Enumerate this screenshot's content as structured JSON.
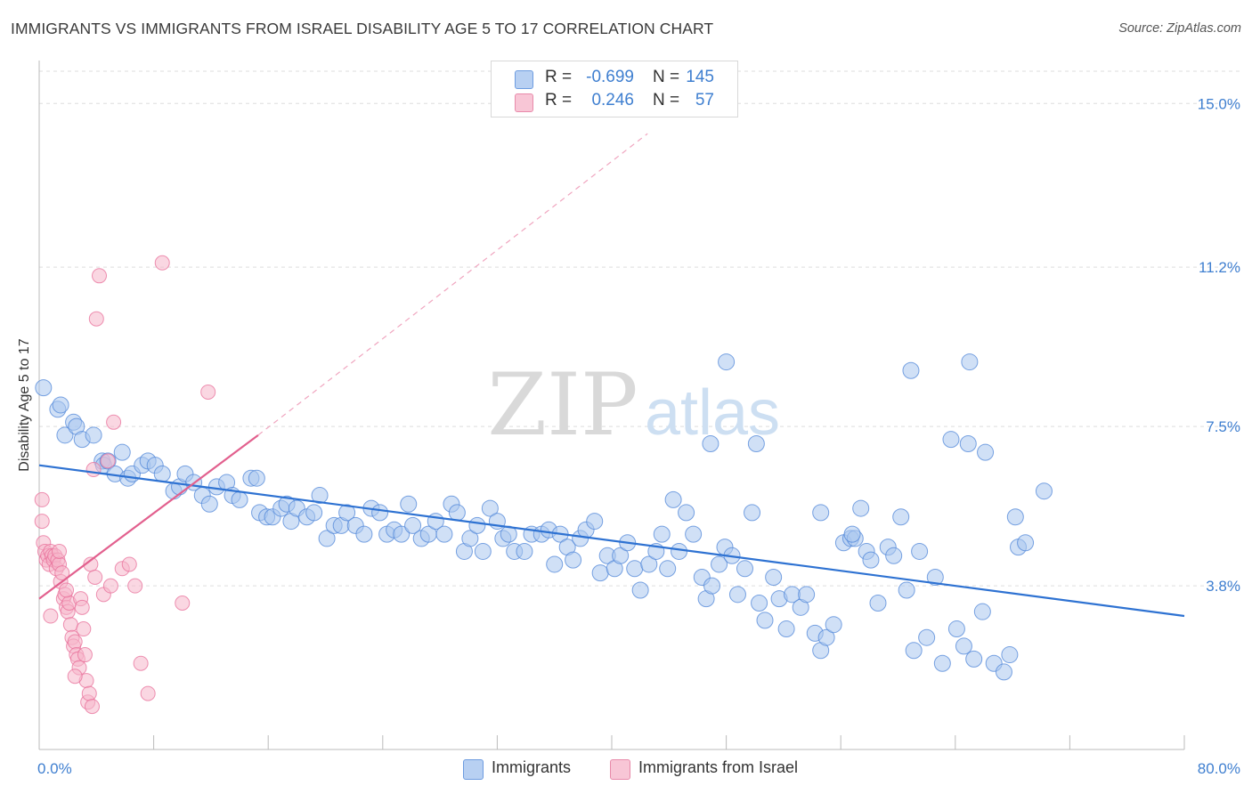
{
  "title": "IMMIGRANTS VS IMMIGRANTS FROM ISRAEL DISABILITY AGE 5 TO 17 CORRELATION CHART",
  "source": "Source: ZipAtlas.com",
  "watermark": {
    "zip": "ZIP",
    "atlas": "atlas"
  },
  "colors": {
    "blue": "#4f86d8",
    "blue_fill": "#a9c7ef",
    "pink": "#e86f9a",
    "pink_fill": "#f5b6cb",
    "tick_text": "#3f7fd0",
    "grid": "#dddddd"
  },
  "legend_top": {
    "rows": [
      {
        "series": "Immigrants",
        "r_label": "R =",
        "r_value": "-0.699",
        "n_label": "N =",
        "n_value": "145"
      },
      {
        "series": "Immigrants from Israel",
        "r_label": "R =",
        "r_value": "0.246",
        "n_label": "N =",
        "n_value": "57"
      }
    ]
  },
  "legend_bottom": [
    "Immigrants",
    "Immigrants from Israel"
  ],
  "chart_data": {
    "type": "scatter",
    "title": "IMMIGRANTS VS IMMIGRANTS FROM ISRAEL DISABILITY AGE 5 TO 17 CORRELATION CHART",
    "xlabel": "",
    "ylabel": "Disability Age 5 to 17",
    "xlim": [
      0,
      80
    ],
    "ylim": [
      0,
      15.75
    ],
    "x_tick_labels": [
      {
        "value": 0,
        "label": "0.0%"
      },
      {
        "value": 80,
        "label": "80.0%"
      }
    ],
    "y_tick_labels": [
      {
        "value": 3.8,
        "label": "3.8%"
      },
      {
        "value": 7.5,
        "label": "7.5%"
      },
      {
        "value": 11.2,
        "label": "11.2%"
      },
      {
        "value": 15.0,
        "label": "15.0%"
      }
    ],
    "x_minor_ticks": [
      0,
      8,
      16,
      24,
      32,
      40,
      48,
      56,
      64,
      72,
      80
    ],
    "grid": true,
    "legend_position": "top-center",
    "series": [
      {
        "name": "Immigrants",
        "color": "#4f86d8",
        "trend": {
          "x": [
            0,
            80
          ],
          "y": [
            6.6,
            3.1
          ]
        },
        "points": [
          [
            0.3,
            8.4
          ],
          [
            1.3,
            7.9
          ],
          [
            1.5,
            8.0
          ],
          [
            1.8,
            7.3
          ],
          [
            2.4,
            7.6
          ],
          [
            2.6,
            7.5
          ],
          [
            3.0,
            7.2
          ],
          [
            3.8,
            7.3
          ],
          [
            4.4,
            6.7
          ],
          [
            4.5,
            6.6
          ],
          [
            4.8,
            6.7
          ],
          [
            5.3,
            6.4
          ],
          [
            6.2,
            6.3
          ],
          [
            6.5,
            6.4
          ],
          [
            5.8,
            6.9
          ],
          [
            7.2,
            6.6
          ],
          [
            7.6,
            6.7
          ],
          [
            8.1,
            6.6
          ],
          [
            8.6,
            6.4
          ],
          [
            9.4,
            6.0
          ],
          [
            9.8,
            6.1
          ],
          [
            10.2,
            6.4
          ],
          [
            10.8,
            6.2
          ],
          [
            11.4,
            5.9
          ],
          [
            11.9,
            5.7
          ],
          [
            12.4,
            6.1
          ],
          [
            13.1,
            6.2
          ],
          [
            13.5,
            5.9
          ],
          [
            14.0,
            5.8
          ],
          [
            14.8,
            6.3
          ],
          [
            15.2,
            6.3
          ],
          [
            15.4,
            5.5
          ],
          [
            15.9,
            5.4
          ],
          [
            16.3,
            5.4
          ],
          [
            16.9,
            5.6
          ],
          [
            17.3,
            5.7
          ],
          [
            17.6,
            5.3
          ],
          [
            18.0,
            5.6
          ],
          [
            18.7,
            5.4
          ],
          [
            19.2,
            5.5
          ],
          [
            19.6,
            5.9
          ],
          [
            20.1,
            4.9
          ],
          [
            20.6,
            5.2
          ],
          [
            21.1,
            5.2
          ],
          [
            21.5,
            5.5
          ],
          [
            22.1,
            5.2
          ],
          [
            22.7,
            5.0
          ],
          [
            23.2,
            5.6
          ],
          [
            23.8,
            5.5
          ],
          [
            24.3,
            5.0
          ],
          [
            24.8,
            5.1
          ],
          [
            25.3,
            5.0
          ],
          [
            25.8,
            5.7
          ],
          [
            26.1,
            5.2
          ],
          [
            26.7,
            4.9
          ],
          [
            27.2,
            5.0
          ],
          [
            27.7,
            5.3
          ],
          [
            28.3,
            5.0
          ],
          [
            28.8,
            5.7
          ],
          [
            29.2,
            5.5
          ],
          [
            29.7,
            4.6
          ],
          [
            30.1,
            4.9
          ],
          [
            30.6,
            5.2
          ],
          [
            31.0,
            4.6
          ],
          [
            31.5,
            5.6
          ],
          [
            32.0,
            5.3
          ],
          [
            32.4,
            4.9
          ],
          [
            32.8,
            5.0
          ],
          [
            33.2,
            4.6
          ],
          [
            33.9,
            4.6
          ],
          [
            34.4,
            5.0
          ],
          [
            35.1,
            5.0
          ],
          [
            35.6,
            5.1
          ],
          [
            36.0,
            4.3
          ],
          [
            36.4,
            5.0
          ],
          [
            36.9,
            4.7
          ],
          [
            37.3,
            4.4
          ],
          [
            37.8,
            4.9
          ],
          [
            38.2,
            5.1
          ],
          [
            38.8,
            5.3
          ],
          [
            39.2,
            4.1
          ],
          [
            39.7,
            4.5
          ],
          [
            40.2,
            4.2
          ],
          [
            40.6,
            4.5
          ],
          [
            41.1,
            4.8
          ],
          [
            41.6,
            4.2
          ],
          [
            42.0,
            3.7
          ],
          [
            42.6,
            4.3
          ],
          [
            43.1,
            4.6
          ],
          [
            43.5,
            5.0
          ],
          [
            43.9,
            4.2
          ],
          [
            44.3,
            5.8
          ],
          [
            44.7,
            4.6
          ],
          [
            45.2,
            5.5
          ],
          [
            45.7,
            5.0
          ],
          [
            46.3,
            4.0
          ],
          [
            46.6,
            3.5
          ],
          [
            47.0,
            3.8
          ],
          [
            47.5,
            4.3
          ],
          [
            47.9,
            4.7
          ],
          [
            48.4,
            4.5
          ],
          [
            48.8,
            3.6
          ],
          [
            49.3,
            4.2
          ],
          [
            49.8,
            5.5
          ],
          [
            50.3,
            3.4
          ],
          [
            50.7,
            3.0
          ],
          [
            51.3,
            4.0
          ],
          [
            51.7,
            3.5
          ],
          [
            52.2,
            2.8
          ],
          [
            52.6,
            3.6
          ],
          [
            53.2,
            3.3
          ],
          [
            53.6,
            3.6
          ],
          [
            54.2,
            2.7
          ],
          [
            54.6,
            2.3
          ],
          [
            55.0,
            2.6
          ],
          [
            55.5,
            2.9
          ],
          [
            56.2,
            4.8
          ],
          [
            56.7,
            4.9
          ],
          [
            57.0,
            4.9
          ],
          [
            57.4,
            5.6
          ],
          [
            57.8,
            4.6
          ],
          [
            58.1,
            4.4
          ],
          [
            58.6,
            3.4
          ],
          [
            59.3,
            4.7
          ],
          [
            59.7,
            4.5
          ],
          [
            60.2,
            5.4
          ],
          [
            60.6,
            3.7
          ],
          [
            61.1,
            2.3
          ],
          [
            61.5,
            4.6
          ],
          [
            62.0,
            2.6
          ],
          [
            62.6,
            4.0
          ],
          [
            63.1,
            2.0
          ],
          [
            64.1,
            2.8
          ],
          [
            64.6,
            2.4
          ],
          [
            65.3,
            2.1
          ],
          [
            65.9,
            3.2
          ],
          [
            66.1,
            6.9
          ],
          [
            66.7,
            2.0
          ],
          [
            67.4,
            1.8
          ],
          [
            67.8,
            2.2
          ],
          [
            68.2,
            5.4
          ],
          [
            68.4,
            4.7
          ],
          [
            68.9,
            4.8
          ],
          [
            70.2,
            6.0
          ],
          [
            64.9,
            7.1
          ],
          [
            63.7,
            7.2
          ],
          [
            54.6,
            5.5
          ],
          [
            50.1,
            7.1
          ],
          [
            46.9,
            7.1
          ],
          [
            48.0,
            9.0
          ],
          [
            65.0,
            9.0
          ],
          [
            56.8,
            5.0
          ],
          [
            60.9,
            8.8
          ]
        ]
      },
      {
        "name": "Immigrants from Israel",
        "color": "#e86f9a",
        "trend": {
          "x": [
            0,
            15.3
          ],
          "y": [
            3.5,
            7.3
          ],
          "dashed_extension": {
            "x": [
              15.3,
              42.5
            ],
            "y": [
              7.3,
              14.3
            ]
          }
        },
        "points": [
          [
            0.2,
            5.8
          ],
          [
            0.2,
            5.3
          ],
          [
            0.3,
            4.8
          ],
          [
            0.4,
            4.6
          ],
          [
            0.5,
            4.4
          ],
          [
            0.6,
            4.5
          ],
          [
            0.7,
            4.3
          ],
          [
            0.8,
            4.6
          ],
          [
            0.9,
            4.5
          ],
          [
            1.0,
            4.4
          ],
          [
            1.1,
            4.5
          ],
          [
            1.2,
            4.2
          ],
          [
            1.3,
            4.4
          ],
          [
            1.4,
            4.3
          ],
          [
            1.5,
            3.9
          ],
          [
            1.6,
            4.1
          ],
          [
            1.7,
            3.5
          ],
          [
            1.8,
            3.6
          ],
          [
            1.9,
            3.3
          ],
          [
            2.0,
            3.2
          ],
          [
            2.1,
            3.4
          ],
          [
            2.2,
            2.9
          ],
          [
            2.3,
            2.6
          ],
          [
            2.4,
            2.4
          ],
          [
            2.5,
            2.5
          ],
          [
            2.6,
            2.2
          ],
          [
            2.7,
            2.1
          ],
          [
            2.8,
            1.9
          ],
          [
            2.9,
            3.5
          ],
          [
            3.0,
            3.3
          ],
          [
            3.1,
            2.8
          ],
          [
            3.2,
            2.2
          ],
          [
            3.3,
            1.6
          ],
          [
            3.4,
            1.1
          ],
          [
            3.5,
            1.3
          ],
          [
            3.6,
            4.3
          ],
          [
            3.7,
            1.0
          ],
          [
            3.8,
            6.5
          ],
          [
            3.9,
            4.0
          ],
          [
            4.0,
            10.0
          ],
          [
            4.2,
            11.0
          ],
          [
            4.5,
            3.6
          ],
          [
            4.8,
            6.7
          ],
          [
            5.0,
            3.8
          ],
          [
            5.2,
            7.6
          ],
          [
            5.8,
            4.2
          ],
          [
            6.3,
            4.3
          ],
          [
            6.7,
            3.8
          ],
          [
            7.1,
            2.0
          ],
          [
            7.6,
            1.3
          ],
          [
            8.6,
            11.3
          ],
          [
            10.0,
            3.4
          ],
          [
            11.8,
            8.3
          ],
          [
            1.4,
            4.6
          ],
          [
            1.9,
            3.7
          ],
          [
            0.8,
            3.1
          ],
          [
            2.5,
            1.7
          ]
        ]
      }
    ]
  }
}
